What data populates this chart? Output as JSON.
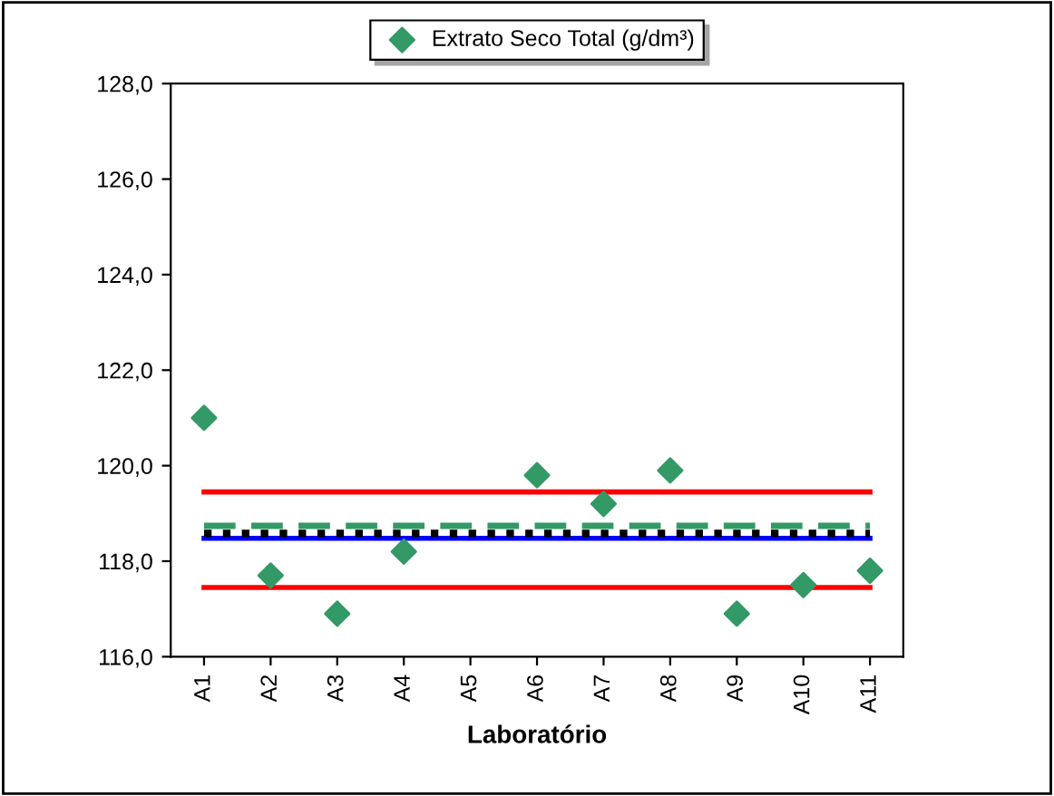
{
  "chart_data": {
    "type": "scatter",
    "xlabel": "Laboratório",
    "categories": [
      "A1",
      "A2",
      "A3",
      "A4",
      "A5",
      "A6",
      "A7",
      "A8",
      "A9",
      "A10",
      "A11"
    ],
    "series": [
      {
        "name": "Extrato Seco Total (g/dm³)",
        "color": "#339966",
        "marker": "diamond",
        "values": [
          121.0,
          117.7,
          116.9,
          118.2,
          null,
          119.8,
          119.2,
          119.9,
          116.9,
          117.5,
          117.8
        ]
      },
      {
        "type": "line",
        "color": "#ff0000",
        "line_style": "solid",
        "values": [
          119.45,
          119.45,
          119.45,
          119.45,
          119.45,
          119.45,
          119.45,
          119.45,
          119.45,
          119.45,
          119.45
        ]
      },
      {
        "type": "line",
        "color": "#ff0000",
        "line_style": "solid",
        "values": [
          117.45,
          117.45,
          117.45,
          117.45,
          117.45,
          117.45,
          117.45,
          117.45,
          117.45,
          117.45,
          117.45
        ]
      },
      {
        "type": "line",
        "color": "#0000ff",
        "line_style": "solid",
        "values": [
          118.48,
          118.48,
          118.48,
          118.48,
          118.48,
          118.48,
          118.48,
          118.48,
          118.48,
          118.48,
          118.48
        ]
      },
      {
        "type": "line",
        "color": "#000000",
        "line_style": "dotted",
        "values": [
          118.58,
          118.58,
          118.58,
          118.58,
          118.58,
          118.58,
          118.58,
          118.58,
          118.58,
          118.58,
          118.58
        ]
      },
      {
        "type": "line",
        "color": "#339966",
        "line_style": "dashed",
        "values": [
          118.74,
          118.74,
          118.74,
          118.74,
          118.74,
          118.74,
          118.74,
          118.74,
          118.74,
          118.74,
          118.74
        ]
      }
    ],
    "ylim": [
      116,
      128
    ],
    "yticks": [
      {
        "value": 116,
        "label": "116,0"
      },
      {
        "value": 118,
        "label": "118,0"
      },
      {
        "value": 120,
        "label": "120,0"
      },
      {
        "value": 122,
        "label": "122,0"
      },
      {
        "value": 124,
        "label": "124,0"
      },
      {
        "value": 126,
        "label": "126,0"
      },
      {
        "value": 128,
        "label": "128,0"
      }
    ],
    "grid": false,
    "legend": "top"
  }
}
